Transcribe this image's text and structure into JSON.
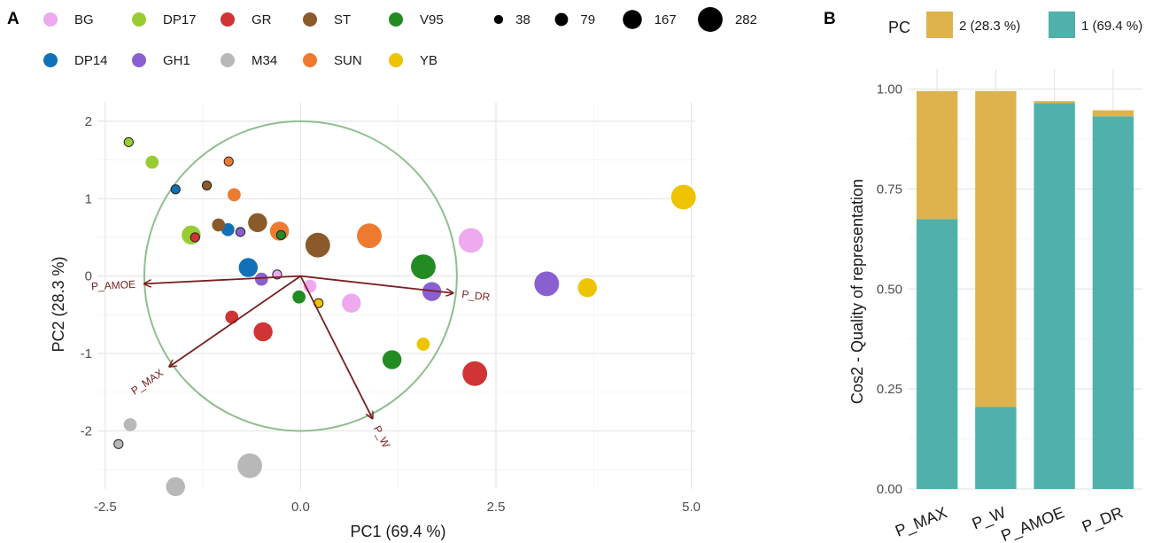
{
  "colors": {
    "BG": "#eeaaee",
    "DP17": "#99cc33",
    "GR": "#d03434",
    "ST": "#8b5a2b",
    "V95": "#228b22",
    "DP14": "#1070b8",
    "GH1": "#8a60d0",
    "M34": "#b8b8b8",
    "SUN": "#ee7a30",
    "YB": "#eec300",
    "arrow": "#7a1e1e",
    "circle": "#8fbf8f",
    "pc1_fill": "#4fb0ac",
    "pc2_fill": "#deb34e"
  },
  "panel_a": {
    "letter": "A"
  },
  "panel_b": {
    "letter": "B"
  },
  "chart_data": [
    {
      "type": "scatter",
      "title": "",
      "xlabel": "PC1 (69.4 %)",
      "ylabel": "PC2 (28.3 %)",
      "xlim": [
        -2.6,
        5.05
      ],
      "ylim": [
        -2.75,
        2.25
      ],
      "xticks": [
        -2.5,
        0.0,
        2.5,
        5.0
      ],
      "xtick_labels": [
        "-2.5",
        "0.0",
        "2.5",
        "5.0"
      ],
      "yticks": [
        -2,
        -1,
        0,
        1,
        2
      ],
      "ytick_labels": [
        "-2",
        "-1",
        "0",
        "1",
        "2"
      ],
      "grid": true,
      "legend_position": "top",
      "group_legend": [
        "BG",
        "DP17",
        "GR",
        "ST",
        "V95",
        "DP14",
        "GH1",
        "M34",
        "SUN",
        "YB"
      ],
      "size_legend": [
        38,
        79,
        167,
        282
      ],
      "correlation_circle_radius": 2.0,
      "points": [
        {
          "group": "DP17",
          "x": -2.2,
          "y": 1.73,
          "size": 38
        },
        {
          "group": "DP17",
          "x": -1.9,
          "y": 1.47,
          "size": 79
        },
        {
          "group": "DP17",
          "x": -1.4,
          "y": 0.53,
          "size": 167
        },
        {
          "group": "DP14",
          "x": -1.6,
          "y": 1.12,
          "size": 38
        },
        {
          "group": "DP14",
          "x": -0.93,
          "y": 0.6,
          "size": 79
        },
        {
          "group": "DP14",
          "x": -0.67,
          "y": 0.11,
          "size": 167
        },
        {
          "group": "ST",
          "x": -1.2,
          "y": 1.17,
          "size": 38
        },
        {
          "group": "ST",
          "x": -1.05,
          "y": 0.66,
          "size": 79
        },
        {
          "group": "ST",
          "x": -0.55,
          "y": 0.69,
          "size": 167
        },
        {
          "group": "ST",
          "x": 0.22,
          "y": 0.4,
          "size": 282
        },
        {
          "group": "SUN",
          "x": -0.92,
          "y": 1.48,
          "size": 38
        },
        {
          "group": "SUN",
          "x": -0.85,
          "y": 1.05,
          "size": 79
        },
        {
          "group": "SUN",
          "x": -0.27,
          "y": 0.58,
          "size": 167
        },
        {
          "group": "SUN",
          "x": 0.88,
          "y": 0.52,
          "size": 282
        },
        {
          "group": "GH1",
          "x": -0.77,
          "y": 0.57,
          "size": 38
        },
        {
          "group": "GH1",
          "x": -0.5,
          "y": -0.04,
          "size": 79
        },
        {
          "group": "GH1",
          "x": 1.68,
          "y": -0.2,
          "size": 167
        },
        {
          "group": "GH1",
          "x": 3.15,
          "y": -0.1,
          "size": 282
        },
        {
          "group": "BG",
          "x": -0.3,
          "y": 0.02,
          "size": 38
        },
        {
          "group": "BG",
          "x": 0.12,
          "y": -0.13,
          "size": 79
        },
        {
          "group": "BG",
          "x": 0.65,
          "y": -0.35,
          "size": 167
        },
        {
          "group": "BG",
          "x": 2.18,
          "y": 0.46,
          "size": 282
        },
        {
          "group": "GR",
          "x": -1.35,
          "y": 0.5,
          "size": 38
        },
        {
          "group": "GR",
          "x": -0.88,
          "y": -0.53,
          "size": 79
        },
        {
          "group": "GR",
          "x": -0.48,
          "y": -0.72,
          "size": 167
        },
        {
          "group": "GR",
          "x": 2.23,
          "y": -1.26,
          "size": 282
        },
        {
          "group": "V95",
          "x": -0.25,
          "y": 0.53,
          "size": 38
        },
        {
          "group": "V95",
          "x": -0.02,
          "y": -0.27,
          "size": 79
        },
        {
          "group": "V95",
          "x": 1.17,
          "y": -1.08,
          "size": 167
        },
        {
          "group": "V95",
          "x": 1.57,
          "y": 0.12,
          "size": 282
        },
        {
          "group": "YB",
          "x": 0.23,
          "y": -0.35,
          "size": 38
        },
        {
          "group": "YB",
          "x": 1.57,
          "y": -0.88,
          "size": 79
        },
        {
          "group": "YB",
          "x": 3.67,
          "y": -0.15,
          "size": 167
        },
        {
          "group": "YB",
          "x": 4.9,
          "y": 1.02,
          "size": 282
        },
        {
          "group": "M34",
          "x": -2.33,
          "y": -2.17,
          "size": 38
        },
        {
          "group": "M34",
          "x": -2.18,
          "y": -1.92,
          "size": 79
        },
        {
          "group": "M34",
          "x": -1.6,
          "y": -2.72,
          "size": 167
        },
        {
          "group": "M34",
          "x": -0.65,
          "y": -2.45,
          "size": 282
        }
      ],
      "vectors": [
        {
          "name": "P_AMOE",
          "x": -2.0,
          "y": -0.1
        },
        {
          "name": "P_MAX",
          "x": -1.68,
          "y": -1.17
        },
        {
          "name": "P_W",
          "x": 0.92,
          "y": -1.84
        },
        {
          "name": "P_DR",
          "x": 1.95,
          "y": -0.22
        }
      ]
    },
    {
      "type": "bar",
      "stacked": true,
      "title": "",
      "xlabel": "",
      "ylabel": "Cos2 - Quality of representation",
      "categories": [
        "P_MAX",
        "P_W",
        "P_AMOE",
        "P_DR"
      ],
      "ylim": [
        0,
        1.05
      ],
      "yticks": [
        0,
        0.25,
        0.5,
        0.75,
        1.0
      ],
      "ytick_labels": [
        "0.00",
        "0.25",
        "0.50",
        "0.75",
        "1.00"
      ],
      "grid": true,
      "legend_title": "PC",
      "legend_position": "top",
      "series": [
        {
          "name": "1 (69.4 %)",
          "values": [
            0.675,
            0.205,
            0.965,
            0.932
          ]
        },
        {
          "name": "2 (28.3 %)",
          "values": [
            0.32,
            0.79,
            0.005,
            0.015
          ]
        }
      ],
      "legend_order": [
        "2 (28.3 %)",
        "1 (69.4 %)"
      ]
    }
  ]
}
